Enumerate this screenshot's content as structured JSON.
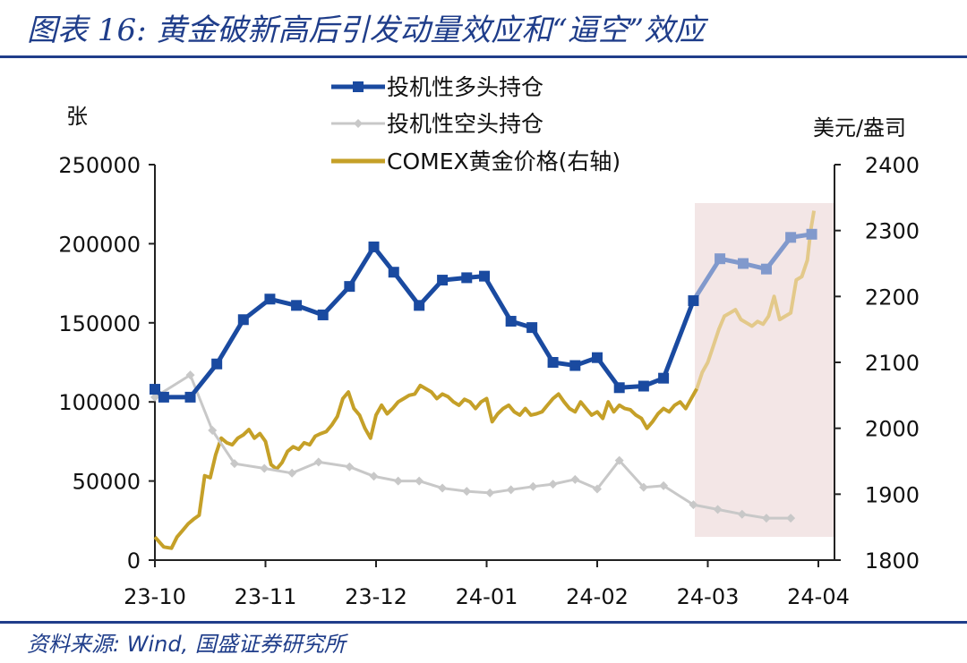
{
  "header": {
    "title": "图表 16: 黄金破新高后引发动量效应和“逼空”效应"
  },
  "footer": {
    "source": "资料来源: Wind, 国盛证券研究所"
  },
  "colors": {
    "long": "#1a4aa0",
    "long_light": "#8199cc",
    "short": "#c8c8c8",
    "gold": "#c5a028",
    "gold_light": "#e3c98a",
    "highlight": "#f3e6e6",
    "rule": "#1f3d8a"
  },
  "chart_data": {
    "type": "line",
    "left_unit": "张",
    "right_unit": "美元/盎司",
    "left_ticks": [
      "0",
      "50000",
      "100000",
      "150000",
      "200000",
      "250000"
    ],
    "right_ticks": [
      "1800",
      "1900",
      "2000",
      "2100",
      "2200",
      "2300",
      "2400"
    ],
    "x_ticks": [
      "23-10",
      "23-11",
      "23-12",
      "24-01",
      "24-02",
      "24-03",
      "24-04"
    ],
    "ylim_left": [
      0,
      250000
    ],
    "ylim_right": [
      1800,
      2400
    ],
    "highlight_period": [
      "24-03",
      "24-04"
    ],
    "legend": [
      "投机性多头持仓",
      "投机性空头持仓",
      "COMEX黄金价格(右轴)"
    ],
    "series": [
      {
        "name": "投机性多头持仓",
        "axis": "left",
        "x": [
          0,
          0.08,
          0.32,
          0.56,
          0.8,
          1.04,
          1.28,
          1.52,
          1.76,
          1.98,
          2.16,
          2.39,
          2.6,
          2.82,
          2.98,
          3.22,
          3.41,
          3.6,
          3.8,
          4.0,
          4.2,
          4.42,
          4.6,
          4.87,
          5.11,
          5.32,
          5.53,
          5.75,
          5.94
        ],
        "values": [
          108000,
          103000,
          103000,
          124000,
          152000,
          165000,
          161000,
          155000,
          173000,
          198000,
          182000,
          161000,
          177000,
          178500,
          179500,
          151000,
          147000,
          125000,
          123000,
          128000,
          109000,
          110000,
          115000,
          164000,
          190500,
          187500,
          184000,
          204000,
          206000
        ]
      },
      {
        "name": "投机性空头持仓",
        "axis": "left",
        "x": [
          0,
          0.32,
          0.52,
          0.72,
          0.99,
          1.24,
          1.48,
          1.76,
          1.98,
          2.2,
          2.39,
          2.6,
          2.82,
          3.03,
          3.22,
          3.42,
          3.6,
          3.8,
          4.0,
          4.2,
          4.42,
          4.6,
          4.87,
          5.09,
          5.31,
          5.53,
          5.75
        ],
        "values": [
          103000,
          117000,
          82000,
          61000,
          58000,
          55000,
          62000,
          59000,
          53000,
          50000,
          50000,
          45500,
          43500,
          42500,
          44500,
          46500,
          48000,
          51000,
          45000,
          63000,
          46000,
          47000,
          35000,
          32000,
          29000,
          26500,
          26500
        ]
      },
      {
        "name": "COMEX黄金价格(右轴)",
        "axis": "right",
        "x": [
          0,
          0.08,
          0.15,
          0.2,
          0.25,
          0.3,
          0.35,
          0.4,
          0.45,
          0.5,
          0.55,
          0.6,
          0.65,
          0.7,
          0.75,
          0.8,
          0.85,
          0.9,
          0.95,
          1.0,
          1.05,
          1.1,
          1.15,
          1.2,
          1.25,
          1.3,
          1.35,
          1.4,
          1.45,
          1.5,
          1.55,
          1.6,
          1.65,
          1.7,
          1.75,
          1.8,
          1.85,
          1.9,
          1.95,
          2.0,
          2.05,
          2.1,
          2.15,
          2.2,
          2.25,
          2.3,
          2.35,
          2.4,
          2.45,
          2.5,
          2.55,
          2.6,
          2.65,
          2.7,
          2.75,
          2.8,
          2.85,
          2.9,
          2.95,
          3.0,
          3.05,
          3.1,
          3.15,
          3.2,
          3.25,
          3.3,
          3.35,
          3.4,
          3.45,
          3.5,
          3.55,
          3.6,
          3.65,
          3.7,
          3.75,
          3.8,
          3.85,
          3.9,
          3.95,
          4.0,
          4.05,
          4.1,
          4.15,
          4.2,
          4.25,
          4.3,
          4.35,
          4.4,
          4.45,
          4.5,
          4.55,
          4.6,
          4.65,
          4.7,
          4.75,
          4.8,
          4.85,
          4.9,
          4.95,
          5.0,
          5.05,
          5.1,
          5.15,
          5.2,
          5.25,
          5.3,
          5.35,
          5.4,
          5.45,
          5.5,
          5.55,
          5.6,
          5.65,
          5.7,
          5.75,
          5.8,
          5.85,
          5.9,
          5.93,
          5.96
        ],
        "values": [
          1835,
          1820,
          1818,
          1835,
          1845,
          1855,
          1862,
          1868,
          1928,
          1925,
          1960,
          1985,
          1978,
          1975,
          1985,
          1990,
          1998,
          1985,
          1992,
          1980,
          1945,
          1938,
          1948,
          1965,
          1972,
          1968,
          1978,
          1975,
          1988,
          1992,
          1995,
          2005,
          2018,
          2045,
          2055,
          2030,
          2020,
          2000,
          1985,
          2020,
          2035,
          2022,
          2030,
          2040,
          2045,
          2050,
          2052,
          2065,
          2060,
          2055,
          2045,
          2052,
          2048,
          2040,
          2035,
          2044,
          2040,
          2030,
          2040,
          2045,
          2010,
          2022,
          2030,
          2035,
          2025,
          2020,
          2030,
          2020,
          2022,
          2025,
          2035,
          2045,
          2052,
          2040,
          2030,
          2025,
          2040,
          2030,
          2020,
          2025,
          2015,
          2040,
          2025,
          2035,
          2030,
          2028,
          2020,
          2015,
          2000,
          2010,
          2022,
          2030,
          2025,
          2035,
          2040,
          2030,
          2045,
          2060,
          2085,
          2100,
          2125,
          2150,
          2170,
          2175,
          2180,
          2165,
          2160,
          2155,
          2162,
          2158,
          2170,
          2200,
          2165,
          2170,
          2175,
          2225,
          2230,
          2255,
          2300,
          2330
        ]
      }
    ]
  }
}
